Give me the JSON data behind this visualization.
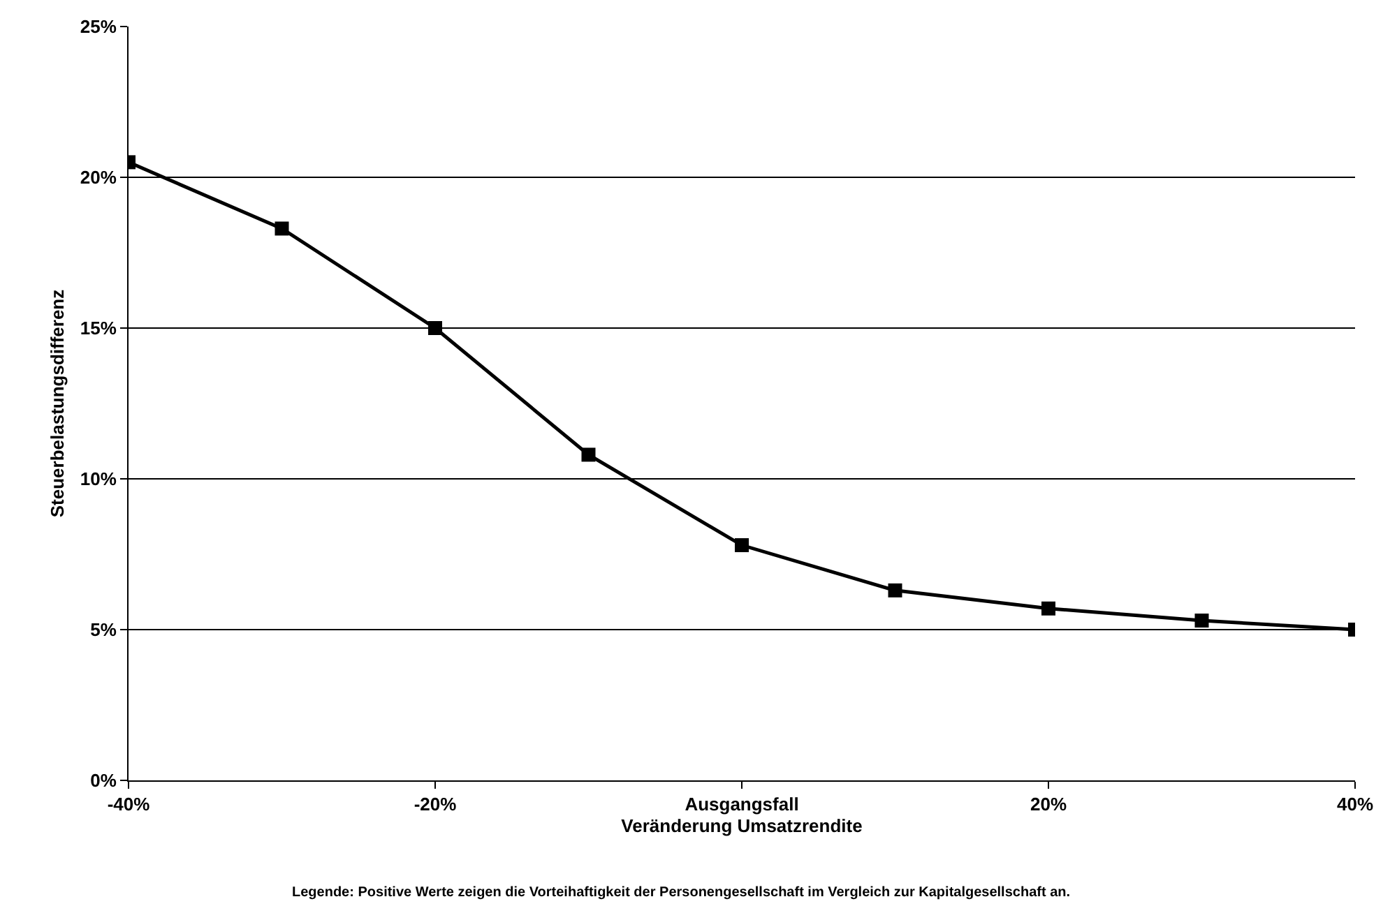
{
  "chart_data": {
    "type": "line",
    "xlabel": "Veränderung Umsatzrendite",
    "ylabel": "Steuerbelastungsdifferenz",
    "x": [
      -40,
      -30,
      -20,
      -10,
      0,
      10,
      20,
      30,
      40
    ],
    "series": [
      {
        "color": "#000000",
        "values": [
          20.5,
          18.3,
          15.0,
          10.8,
          7.8,
          6.3,
          5.7,
          5.3,
          5.0
        ]
      }
    ],
    "xlim": [
      -40,
      40
    ],
    "xticks": [
      {
        "value": -40,
        "label": "-40%"
      },
      {
        "value": -20,
        "label": "-20%"
      },
      {
        "value": 0,
        "label": "Ausgangsfall"
      },
      {
        "value": 20,
        "label": "20%"
      },
      {
        "value": 40,
        "label": "40%"
      }
    ],
    "ylim": [
      0,
      25
    ],
    "yticks": [
      {
        "value": 0,
        "label": "0%"
      },
      {
        "value": 5,
        "label": "5%"
      },
      {
        "value": 10,
        "label": "10%"
      },
      {
        "value": 15,
        "label": "15%"
      },
      {
        "value": 20,
        "label": "20%"
      },
      {
        "value": 25,
        "label": "25%"
      }
    ],
    "grid": "y",
    "marker": "square",
    "line_style": "solid",
    "annotations": [
      "Legende: Positive Werte zeigen die Vorteihaftigkeit der Personengesellschaft im Vergleich zur Kapitalgesellschaft an."
    ]
  }
}
